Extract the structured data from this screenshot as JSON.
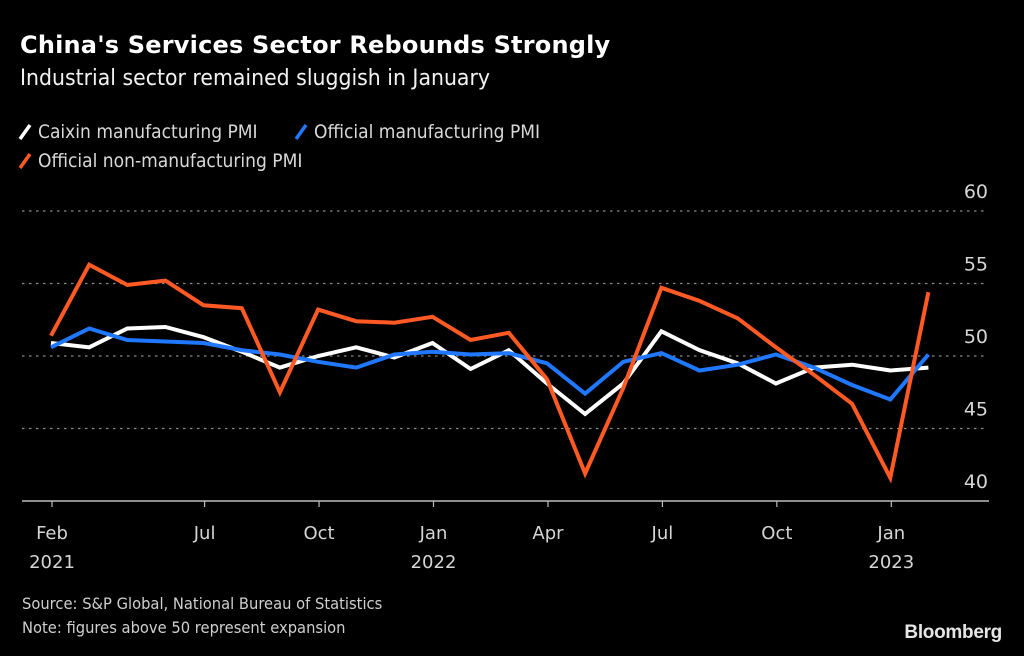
{
  "header": {
    "title": "China's Services Sector Rebounds Strongly",
    "subtitle": "Industrial sector remained sluggish in January"
  },
  "legend": [
    {
      "label": "Caixin manufacturing PMI",
      "color": "#ffffff"
    },
    {
      "label": "Official manufacturing PMI",
      "color": "#1f78ff"
    },
    {
      "label": "Official non-manufacturing PMI",
      "color": "#ff5a24"
    }
  ],
  "footer": {
    "source": "Source: S&P Global, National Bureau of Statistics",
    "note": "Note: figures above 50 represent expansion",
    "brand": "Bloomberg"
  },
  "chart_data": {
    "type": "line",
    "title": "China's Services Sector Rebounds Strongly",
    "subtitle": "Industrial sector remained sluggish in January",
    "xlabel": "",
    "ylabel": "",
    "x": [
      "Feb 2021",
      "Mar 2021",
      "Apr 2021",
      "May 2021",
      "Jun 2021",
      "Jul 2021",
      "Aug 2021",
      "Sep 2021",
      "Oct 2021",
      "Nov 2021",
      "Dec 2021",
      "Jan 2022",
      "Feb 2022",
      "Mar 2022",
      "Apr 2022",
      "May 2022",
      "Jun 2022",
      "Jul 2022",
      "Aug 2022",
      "Sep 2022",
      "Oct 2022",
      "Nov 2022",
      "Dec 2022",
      "Jan 2023"
    ],
    "series": [
      {
        "name": "Caixin manufacturing PMI",
        "color": "#ffffff",
        "values": [
          50.9,
          50.6,
          51.9,
          52.0,
          51.3,
          50.3,
          49.2,
          50.0,
          50.6,
          49.9,
          50.9,
          49.1,
          50.4,
          48.1,
          46.0,
          48.1,
          51.7,
          50.4,
          49.5,
          48.1,
          49.2,
          49.4,
          49.0,
          49.2
        ]
      },
      {
        "name": "Official manufacturing PMI",
        "color": "#1f78ff",
        "values": [
          50.6,
          51.9,
          51.1,
          51.0,
          50.9,
          50.4,
          50.1,
          49.6,
          49.2,
          50.1,
          50.3,
          50.1,
          50.2,
          49.5,
          47.4,
          49.6,
          50.2,
          49.0,
          49.4,
          50.1,
          49.2,
          48.0,
          47.0,
          50.1
        ]
      },
      {
        "name": "Official non-manufacturing PMI",
        "color": "#ff5a24",
        "values": [
          51.4,
          56.3,
          54.9,
          55.2,
          53.5,
          53.3,
          47.5,
          53.2,
          52.4,
          52.3,
          52.7,
          51.1,
          51.6,
          48.4,
          41.9,
          47.8,
          54.7,
          53.8,
          52.6,
          50.6,
          48.7,
          46.7,
          41.6,
          54.4
        ]
      }
    ],
    "ylim": [
      40,
      60
    ],
    "yticks": [
      40,
      45,
      50,
      55,
      60
    ],
    "xticks": [
      {
        "at": "Feb 2021",
        "label": "Feb",
        "year": "2021"
      },
      {
        "at": "Jun 2021",
        "label": "Jul",
        "year": ""
      },
      {
        "at": "Sep 2021",
        "label": "Oct",
        "year": ""
      },
      {
        "at": "Dec 2021",
        "label": "Jan",
        "year": "2022"
      },
      {
        "at": "Mar 2022",
        "label": "Apr",
        "year": ""
      },
      {
        "at": "Jun 2022",
        "label": "Jul",
        "year": ""
      },
      {
        "at": "Sep 2022",
        "label": "Oct",
        "year": ""
      },
      {
        "at": "Dec 2022",
        "label": "Jan",
        "year": "2023"
      }
    ],
    "grid": true,
    "y_axis_side": "right",
    "legend_position": "top-left"
  }
}
